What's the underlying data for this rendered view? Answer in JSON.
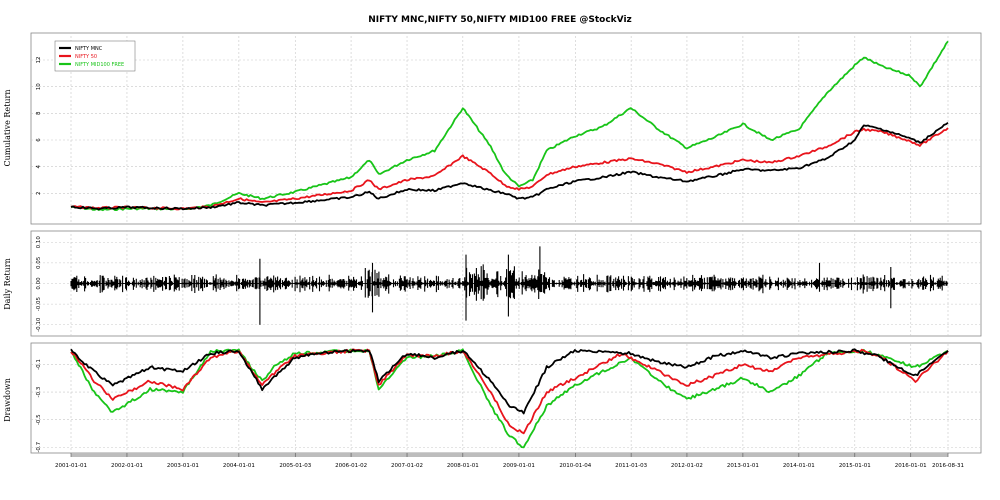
{
  "chart_data": {
    "type": "line",
    "title": "NIFTY MNC,NIFTY 50,NIFTY MID100 FREE @StockViz",
    "series_names": [
      "NIFTY MNC",
      "NIFTY 50",
      "NIFTY MID100 FREE"
    ],
    "colors": {
      "NIFTY MNC": "#000000",
      "NIFTY 50": "#e8141c",
      "NIFTY MID100 FREE": "#18c418"
    },
    "x_tick_labels": [
      "2001-01-01",
      "2002-01-01",
      "2003-01-01",
      "2004-01-01",
      "2005-01-03",
      "2006-01-02",
      "2007-01-02",
      "2008-01-01",
      "2009-01-01",
      "2010-01-04",
      "2011-01-03",
      "2012-01-02",
      "2013-01-01",
      "2014-01-01",
      "2015-01-01",
      "2016-01-01",
      "2016-08-31"
    ],
    "legend_position": "top-left",
    "grid": true,
    "panels": [
      {
        "ylabel": "Cumulative Return",
        "ylim": [
          0,
          13.5
        ],
        "yticks": [
          "2",
          "4",
          "6",
          "8",
          "10",
          "12"
        ],
        "ytick_values": [
          2,
          4,
          6,
          8,
          10,
          12
        ],
        "series": [
          {
            "name": "NIFTY MNC",
            "points": [
              [
                "2001-01-01",
                1.0
              ],
              [
                "2001-07-01",
                0.85
              ],
              [
                "2002-01-01",
                0.95
              ],
              [
                "2002-07-01",
                0.9
              ],
              [
                "2003-01-01",
                0.85
              ],
              [
                "2003-07-01",
                0.95
              ],
              [
                "2004-01-01",
                1.3
              ],
              [
                "2004-06-01",
                1.1
              ],
              [
                "2005-01-01",
                1.3
              ],
              [
                "2006-01-01",
                1.7
              ],
              [
                "2006-05-01",
                2.1
              ],
              [
                "2006-07-01",
                1.6
              ],
              [
                "2007-01-01",
                2.3
              ],
              [
                "2007-07-01",
                2.2
              ],
              [
                "2008-01-01",
                2.8
              ],
              [
                "2008-07-01",
                2.2
              ],
              [
                "2008-10-01",
                2.0
              ],
              [
                "2009-01-01",
                1.6
              ],
              [
                "2009-04-01",
                1.7
              ],
              [
                "2009-07-01",
                2.3
              ],
              [
                "2010-01-01",
                2.9
              ],
              [
                "2010-07-01",
                3.2
              ],
              [
                "2011-01-01",
                3.6
              ],
              [
                "2011-07-01",
                3.2
              ],
              [
                "2012-01-01",
                2.9
              ],
              [
                "2012-07-01",
                3.3
              ],
              [
                "2013-01-01",
                3.8
              ],
              [
                "2013-07-01",
                3.7
              ],
              [
                "2014-01-01",
                3.9
              ],
              [
                "2014-07-01",
                4.6
              ],
              [
                "2015-01-01",
                6.0
              ],
              [
                "2015-03-01",
                7.1
              ],
              [
                "2015-07-01",
                6.8
              ],
              [
                "2016-01-01",
                6.1
              ],
              [
                "2016-03-01",
                5.8
              ],
              [
                "2016-08-31",
                7.3
              ]
            ]
          },
          {
            "name": "NIFTY 50",
            "points": [
              [
                "2001-01-01",
                1.0
              ],
              [
                "2001-07-01",
                0.9
              ],
              [
                "2002-01-01",
                0.95
              ],
              [
                "2002-07-01",
                0.9
              ],
              [
                "2003-01-01",
                0.85
              ],
              [
                "2003-07-01",
                1.0
              ],
              [
                "2004-01-01",
                1.6
              ],
              [
                "2004-06-01",
                1.3
              ],
              [
                "2005-01-01",
                1.6
              ],
              [
                "2006-01-01",
                2.2
              ],
              [
                "2006-05-01",
                3.0
              ],
              [
                "2006-07-01",
                2.3
              ],
              [
                "2007-01-01",
                3.0
              ],
              [
                "2007-07-01",
                3.3
              ],
              [
                "2008-01-01",
                4.8
              ],
              [
                "2008-07-01",
                3.5
              ],
              [
                "2008-10-01",
                2.6
              ],
              [
                "2009-01-01",
                2.3
              ],
              [
                "2009-04-01",
                2.5
              ],
              [
                "2009-07-01",
                3.4
              ],
              [
                "2010-01-01",
                4.0
              ],
              [
                "2010-07-01",
                4.3
              ],
              [
                "2011-01-01",
                4.6
              ],
              [
                "2011-07-01",
                4.2
              ],
              [
                "2012-01-01",
                3.6
              ],
              [
                "2012-07-01",
                4.0
              ],
              [
                "2013-01-01",
                4.5
              ],
              [
                "2013-07-01",
                4.3
              ],
              [
                "2014-01-01",
                4.8
              ],
              [
                "2014-07-01",
                5.5
              ],
              [
                "2015-01-01",
                6.6
              ],
              [
                "2015-03-01",
                6.8
              ],
              [
                "2015-07-01",
                6.6
              ],
              [
                "2016-01-01",
                5.9
              ],
              [
                "2016-03-01",
                5.6
              ],
              [
                "2016-08-31",
                6.9
              ]
            ]
          },
          {
            "name": "NIFTY MID100 FREE",
            "points": [
              [
                "2001-01-01",
                1.0
              ],
              [
                "2001-07-01",
                0.75
              ],
              [
                "2002-01-01",
                0.85
              ],
              [
                "2002-07-01",
                0.85
              ],
              [
                "2003-01-01",
                0.8
              ],
              [
                "2003-07-01",
                1.1
              ],
              [
                "2004-01-01",
                2.0
              ],
              [
                "2004-06-01",
                1.6
              ],
              [
                "2005-01-01",
                2.1
              ],
              [
                "2006-01-01",
                3.2
              ],
              [
                "2006-05-01",
                4.5
              ],
              [
                "2006-07-01",
                3.4
              ],
              [
                "2007-01-01",
                4.5
              ],
              [
                "2007-07-01",
                5.2
              ],
              [
                "2008-01-01",
                8.4
              ],
              [
                "2008-07-01",
                5.5
              ],
              [
                "2008-10-01",
                3.5
              ],
              [
                "2009-01-01",
                2.5
              ],
              [
                "2009-04-01",
                3.0
              ],
              [
                "2009-07-01",
                5.2
              ],
              [
                "2010-01-01",
                6.3
              ],
              [
                "2010-07-01",
                7.0
              ],
              [
                "2011-01-01",
                8.4
              ],
              [
                "2011-07-01",
                6.8
              ],
              [
                "2012-01-01",
                5.4
              ],
              [
                "2012-07-01",
                6.2
              ],
              [
                "2013-01-01",
                7.2
              ],
              [
                "2013-07-01",
                6.0
              ],
              [
                "2014-01-01",
                6.8
              ],
              [
                "2014-07-01",
                9.5
              ],
              [
                "2015-01-01",
                11.6
              ],
              [
                "2015-03-01",
                12.2
              ],
              [
                "2015-07-01",
                11.5
              ],
              [
                "2016-01-01",
                10.8
              ],
              [
                "2016-03-01",
                10.0
              ],
              [
                "2016-08-31",
                13.4
              ]
            ]
          }
        ]
      },
      {
        "ylabel": "Daily Return",
        "ylim": [
          -0.12,
          0.12
        ],
        "yticks": [
          "-0.10",
          "-0.05",
          "0.00",
          "0.05",
          "0.10"
        ],
        "ytick_values": [
          -0.1,
          -0.05,
          0.0,
          0.05,
          0.1
        ],
        "series_name": "NIFTY MNC"
      },
      {
        "ylabel": "Drawdown",
        "ylim": [
          -0.72,
          0.02
        ],
        "yticks": [
          "-0.7",
          "-0.5",
          "-0.3",
          "-0.1"
        ],
        "ytick_values": [
          -0.7,
          -0.5,
          -0.3,
          -0.1
        ],
        "series": [
          {
            "name": "NIFTY MNC",
            "points": [
              [
                "2001-01-01",
                0
              ],
              [
                "2001-06-01",
                -0.15
              ],
              [
                "2001-10-01",
                -0.25
              ],
              [
                "2002-06-01",
                -0.12
              ],
              [
                "2003-01-01",
                -0.15
              ],
              [
                "2003-07-01",
                -0.02
              ],
              [
                "2004-01-01",
                0
              ],
              [
                "2004-06-01",
                -0.28
              ],
              [
                "2004-09-01",
                -0.18
              ],
              [
                "2005-01-01",
                -0.05
              ],
              [
                "2005-06-01",
                -0.02
              ],
              [
                "2006-01-01",
                0
              ],
              [
                "2006-05-01",
                0
              ],
              [
                "2006-07-01",
                -0.22
              ],
              [
                "2007-01-01",
                -0.02
              ],
              [
                "2007-07-01",
                -0.05
              ],
              [
                "2008-01-01",
                0
              ],
              [
                "2008-07-01",
                -0.22
              ],
              [
                "2008-11-01",
                -0.4
              ],
              [
                "2009-02-01",
                -0.45
              ],
              [
                "2009-07-01",
                -0.12
              ],
              [
                "2010-01-01",
                0
              ],
              [
                "2011-01-01",
                -0.02
              ],
              [
                "2011-07-01",
                -0.08
              ],
              [
                "2012-01-01",
                -0.12
              ],
              [
                "2012-07-01",
                -0.04
              ],
              [
                "2013-01-01",
                0
              ],
              [
                "2013-07-01",
                -0.05
              ],
              [
                "2014-01-01",
                -0.02
              ],
              [
                "2015-01-01",
                0
              ],
              [
                "2015-06-01",
                -0.04
              ],
              [
                "2016-02-01",
                -0.18
              ],
              [
                "2016-08-31",
                0
              ]
            ]
          },
          {
            "name": "NIFTY 50",
            "points": [
              [
                "2001-01-01",
                0
              ],
              [
                "2001-06-01",
                -0.22
              ],
              [
                "2001-10-01",
                -0.35
              ],
              [
                "2002-06-01",
                -0.22
              ],
              [
                "2003-01-01",
                -0.28
              ],
              [
                "2003-07-01",
                -0.05
              ],
              [
                "2004-01-01",
                0
              ],
              [
                "2004-06-01",
                -0.25
              ],
              [
                "2004-09-01",
                -0.15
              ],
              [
                "2005-01-01",
                -0.04
              ],
              [
                "2006-01-01",
                0
              ],
              [
                "2006-05-01",
                0
              ],
              [
                "2006-07-01",
                -0.25
              ],
              [
                "2007-01-01",
                -0.03
              ],
              [
                "2007-07-01",
                -0.04
              ],
              [
                "2008-01-01",
                0
              ],
              [
                "2008-07-01",
                -0.3
              ],
              [
                "2008-11-01",
                -0.55
              ],
              [
                "2009-02-01",
                -0.6
              ],
              [
                "2009-07-01",
                -0.3
              ],
              [
                "2010-01-01",
                -0.2
              ],
              [
                "2010-11-01",
                -0.02
              ],
              [
                "2011-07-01",
                -0.15
              ],
              [
                "2012-01-01",
                -0.25
              ],
              [
                "2012-07-01",
                -0.18
              ],
              [
                "2013-01-01",
                -0.1
              ],
              [
                "2013-07-01",
                -0.15
              ],
              [
                "2014-01-01",
                -0.05
              ],
              [
                "2015-03-01",
                0
              ],
              [
                "2015-07-01",
                -0.05
              ],
              [
                "2016-02-01",
                -0.22
              ],
              [
                "2016-08-31",
                0
              ]
            ]
          },
          {
            "name": "NIFTY MID100 FREE",
            "points": [
              [
                "2001-01-01",
                0
              ],
              [
                "2001-06-01",
                -0.3
              ],
              [
                "2001-10-01",
                -0.45
              ],
              [
                "2002-06-01",
                -0.28
              ],
              [
                "2003-01-01",
                -0.3
              ],
              [
                "2003-07-01",
                0
              ],
              [
                "2004-01-01",
                0
              ],
              [
                "2004-06-01",
                -0.22
              ],
              [
                "2004-09-01",
                -0.1
              ],
              [
                "2005-01-01",
                -0.02
              ],
              [
                "2006-01-01",
                0
              ],
              [
                "2006-05-01",
                0
              ],
              [
                "2006-07-01",
                -0.28
              ],
              [
                "2007-01-01",
                -0.05
              ],
              [
                "2007-07-01",
                -0.04
              ],
              [
                "2008-01-01",
                0
              ],
              [
                "2008-07-01",
                -0.4
              ],
              [
                "2008-11-01",
                -0.62
              ],
              [
                "2009-02-01",
                -0.7
              ],
              [
                "2009-07-01",
                -0.4
              ],
              [
                "2010-01-01",
                -0.25
              ],
              [
                "2011-01-01",
                -0.05
              ],
              [
                "2011-07-01",
                -0.22
              ],
              [
                "2012-01-01",
                -0.35
              ],
              [
                "2012-07-01",
                -0.28
              ],
              [
                "2013-01-01",
                -0.2
              ],
              [
                "2013-07-01",
                -0.3
              ],
              [
                "2014-01-01",
                -0.18
              ],
              [
                "2014-07-01",
                -0.02
              ],
              [
                "2015-03-01",
                0
              ],
              [
                "2015-07-01",
                -0.04
              ],
              [
                "2016-02-01",
                -0.12
              ],
              [
                "2016-08-31",
                0
              ]
            ]
          }
        ]
      }
    ]
  }
}
